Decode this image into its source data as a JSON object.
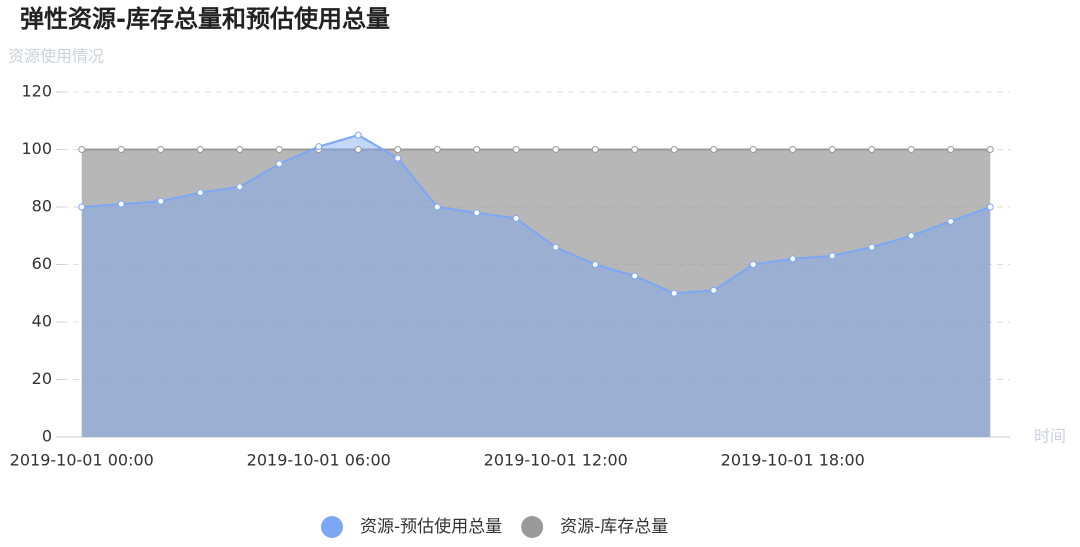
{
  "chart_data": {
    "type": "area",
    "title": "弹性资源-库存总量和预估使用总量",
    "y_label": "资源使用情况",
    "x_label": "时间",
    "categories": [
      "2019-10-01 00:00",
      null,
      null,
      null,
      null,
      null,
      "2019-10-01 06:00",
      null,
      null,
      null,
      null,
      null,
      "2019-10-01 12:00",
      null,
      null,
      null,
      null,
      null,
      "2019-10-01 18:00",
      null,
      null,
      null,
      null,
      null
    ],
    "series": [
      {
        "name": "资源-预估使用总量",
        "color": "#7ba7f5",
        "values": [
          80,
          81,
          82,
          85,
          87,
          95,
          101,
          105,
          97,
          80,
          78,
          76,
          66,
          60,
          56,
          50,
          51,
          60,
          62,
          63,
          66,
          70,
          75,
          80
        ]
      },
      {
        "name": "资源-库存总量",
        "color": "#999999",
        "values": [
          100,
          100,
          100,
          100,
          100,
          100,
          100,
          100,
          100,
          100,
          100,
          100,
          100,
          100,
          100,
          100,
          100,
          100,
          100,
          100,
          100,
          100,
          100,
          100
        ]
      }
    ],
    "ylim": [
      0,
      120
    ],
    "yticks": [
      0,
      20,
      40,
      60,
      80,
      100,
      120
    ],
    "grid": true,
    "legend": "bottom"
  }
}
